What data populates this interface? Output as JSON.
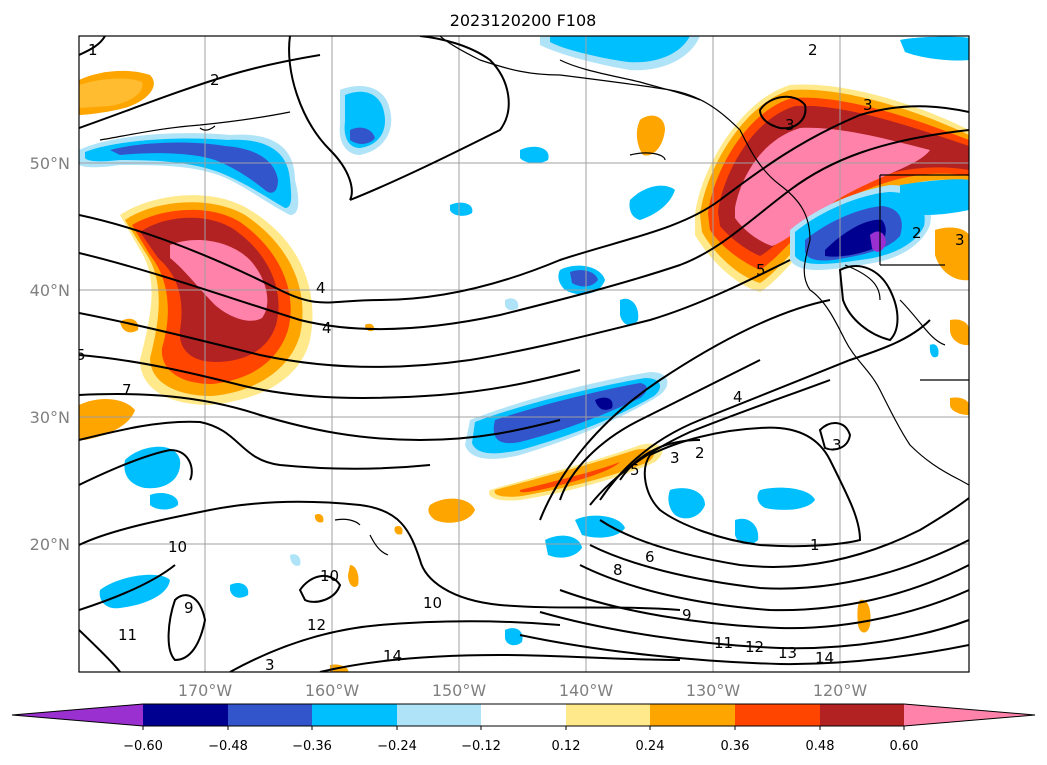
{
  "title": "2023120200 F108",
  "lat_labels": [
    "50°N",
    "40°N",
    "30°N",
    "20°N"
  ],
  "lon_labels": [
    "170°W",
    "160°W",
    "150°W",
    "140°W",
    "130°W",
    "120°W"
  ],
  "colorbar": {
    "ticks": [
      "−0.60",
      "−0.48",
      "−0.36",
      "−0.24",
      "−0.12",
      "0.12",
      "0.24",
      "0.36",
      "0.48",
      "0.60"
    ],
    "colors": [
      "#9b30d0",
      "#000090",
      "#3355cc",
      "#00bfff",
      "#aee3f8",
      "#ffffff",
      "#ffe98a",
      "#ffa500",
      "#ff4500",
      "#b22222",
      "#ff82ab",
      "#ff82ab"
    ]
  },
  "contour_labels": [
    "1",
    "2",
    "3",
    "4",
    "3",
    "2",
    "2",
    "3",
    "4",
    "5",
    "7",
    "10",
    "10",
    "10",
    "9",
    "11",
    "12",
    "14",
    "3",
    "6",
    "8",
    "9",
    "11",
    "12",
    "13",
    "14",
    "1",
    "2",
    "3",
    "4",
    "5",
    "3",
    "5"
  ],
  "colors": {
    "pink": "#ff82ab",
    "darkred": "#b22222",
    "red": "#ff4500",
    "orange": "#ffa500",
    "lightyellow": "#ffe98a",
    "lightblue": "#aee3f8",
    "cyan": "#00bfff",
    "blue": "#3355cc",
    "navy": "#000090",
    "purple": "#9b30d0"
  }
}
